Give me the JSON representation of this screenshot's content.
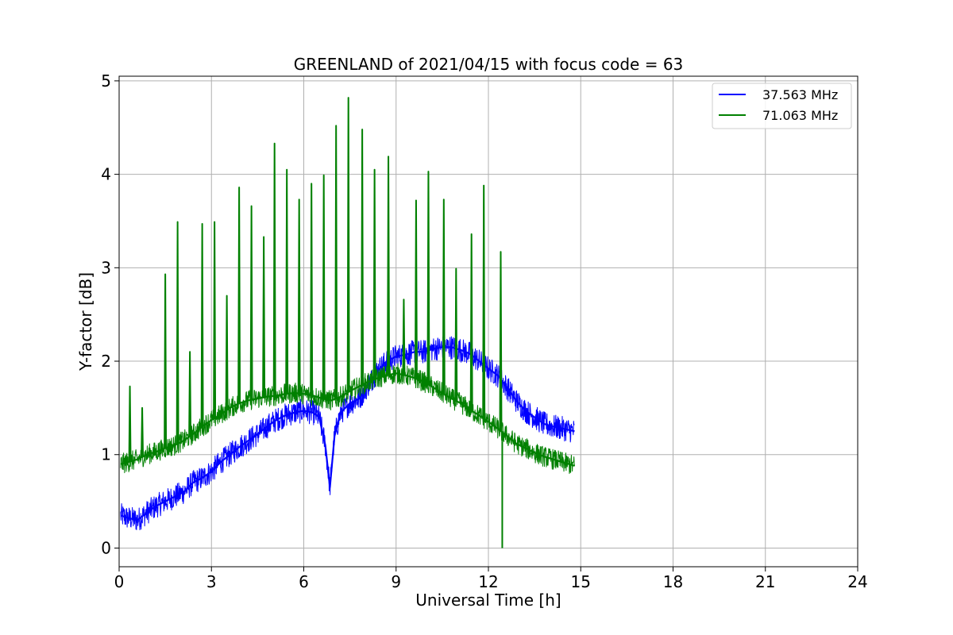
{
  "chart_data": {
    "type": "line",
    "title": "GREENLAND of 2021/04/15 with focus code = 63",
    "xlabel": "Universal Time [h]",
    "ylabel": "Y-factor [dB]",
    "xlim": [
      0,
      24
    ],
    "ylim": [
      -0.2,
      5.05
    ],
    "xticks": [
      0,
      3,
      6,
      9,
      12,
      15,
      18,
      21,
      24
    ],
    "yticks": [
      0,
      1,
      2,
      3,
      4,
      5
    ],
    "grid": true,
    "legend_position": "top-right",
    "series": [
      {
        "name": "37.563 MHz",
        "color": "#0000ff",
        "x": [
          0.05,
          0.3,
          0.6,
          0.9,
          1.2,
          1.5,
          1.8,
          2.1,
          2.4,
          2.7,
          3.0,
          3.3,
          3.6,
          3.9,
          4.2,
          4.5,
          4.8,
          5.1,
          5.4,
          5.7,
          6.0,
          6.3,
          6.5,
          6.7,
          6.85,
          7.0,
          7.2,
          7.5,
          7.8,
          8.1,
          8.4,
          8.7,
          9.0,
          9.3,
          9.6,
          9.9,
          10.2,
          10.5,
          10.8,
          11.1,
          11.4,
          11.7,
          12.0,
          12.3,
          12.6,
          12.9,
          13.2,
          13.5,
          13.8,
          14.1,
          14.4,
          14.8
        ],
        "y": [
          0.35,
          0.32,
          0.3,
          0.38,
          0.45,
          0.5,
          0.55,
          0.6,
          0.7,
          0.75,
          0.82,
          0.92,
          1.0,
          1.08,
          1.15,
          1.22,
          1.3,
          1.37,
          1.42,
          1.45,
          1.47,
          1.45,
          1.4,
          1.1,
          0.65,
          1.2,
          1.45,
          1.55,
          1.6,
          1.75,
          1.9,
          2.0,
          2.05,
          2.07,
          2.1,
          2.1,
          2.13,
          2.15,
          2.15,
          2.12,
          2.08,
          2.0,
          1.92,
          1.85,
          1.72,
          1.58,
          1.47,
          1.4,
          1.33,
          1.3,
          1.28,
          1.25
        ]
      },
      {
        "name": "71.063 MHz",
        "color": "#008000",
        "x": [
          0.05,
          0.3,
          0.6,
          0.9,
          1.2,
          1.5,
          1.8,
          2.1,
          2.4,
          2.7,
          3.0,
          3.3,
          3.6,
          3.9,
          4.2,
          4.5,
          4.8,
          5.1,
          5.4,
          5.7,
          6.0,
          6.3,
          6.6,
          6.9,
          7.2,
          7.5,
          7.8,
          8.1,
          8.4,
          8.7,
          9.0,
          9.3,
          9.6,
          9.9,
          10.2,
          10.5,
          10.8,
          11.1,
          11.4,
          11.7,
          12.0,
          12.3,
          12.6,
          12.9,
          13.2,
          13.5,
          13.8,
          14.1,
          14.4,
          14.8
        ],
        "y": [
          0.9,
          0.92,
          0.95,
          1.0,
          1.03,
          1.07,
          1.1,
          1.15,
          1.22,
          1.3,
          1.37,
          1.43,
          1.5,
          1.55,
          1.58,
          1.6,
          1.62,
          1.63,
          1.65,
          1.66,
          1.65,
          1.63,
          1.6,
          1.58,
          1.62,
          1.68,
          1.73,
          1.78,
          1.82,
          1.85,
          1.87,
          1.85,
          1.82,
          1.78,
          1.72,
          1.66,
          1.6,
          1.55,
          1.48,
          1.42,
          1.35,
          1.28,
          1.2,
          1.12,
          1.07,
          1.02,
          0.98,
          0.95,
          0.92,
          0.88
        ]
      }
    ],
    "green_spikes": [
      {
        "x": 0.35,
        "y": 1.73
      },
      {
        "x": 0.75,
        "y": 1.5
      },
      {
        "x": 1.5,
        "y": 2.93
      },
      {
        "x": 1.9,
        "y": 3.49
      },
      {
        "x": 2.3,
        "y": 2.1
      },
      {
        "x": 2.7,
        "y": 3.47
      },
      {
        "x": 3.1,
        "y": 3.49
      },
      {
        "x": 3.5,
        "y": 2.7
      },
      {
        "x": 3.9,
        "y": 3.86
      },
      {
        "x": 4.3,
        "y": 3.66
      },
      {
        "x": 4.7,
        "y": 3.33
      },
      {
        "x": 5.05,
        "y": 4.33
      },
      {
        "x": 5.45,
        "y": 4.05
      },
      {
        "x": 5.85,
        "y": 3.73
      },
      {
        "x": 6.25,
        "y": 3.9
      },
      {
        "x": 6.65,
        "y": 3.99
      },
      {
        "x": 7.05,
        "y": 4.52
      },
      {
        "x": 7.45,
        "y": 4.82
      },
      {
        "x": 7.9,
        "y": 4.48
      },
      {
        "x": 8.3,
        "y": 4.05
      },
      {
        "x": 8.75,
        "y": 4.19
      },
      {
        "x": 9.25,
        "y": 2.66
      },
      {
        "x": 9.65,
        "y": 3.72
      },
      {
        "x": 10.05,
        "y": 4.03
      },
      {
        "x": 10.55,
        "y": 3.73
      },
      {
        "x": 10.95,
        "y": 2.99
      },
      {
        "x": 11.45,
        "y": 3.36
      },
      {
        "x": 11.85,
        "y": 3.88
      },
      {
        "x": 12.4,
        "y": 3.17
      }
    ],
    "green_dropout": {
      "x": 12.45,
      "y": 0.0
    }
  }
}
